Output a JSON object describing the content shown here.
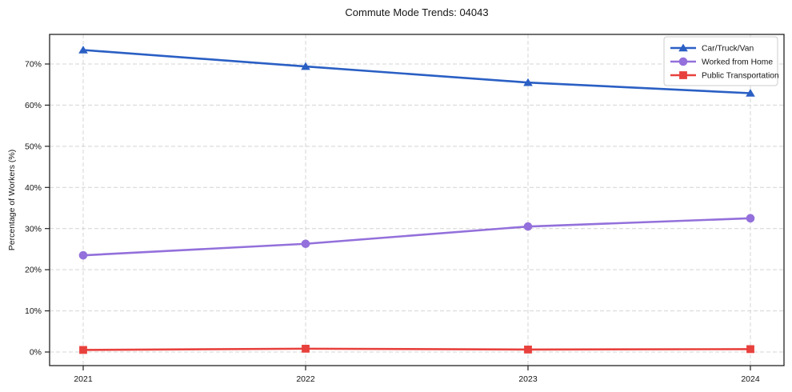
{
  "chart_data": {
    "type": "line",
    "title": "Commute Mode Trends: 04043",
    "xlabel": "",
    "ylabel": "Percentage of Workers (%)",
    "categories": [
      "2021",
      "2022",
      "2023",
      "2024"
    ],
    "yticks": [
      0,
      10,
      20,
      30,
      40,
      50,
      60,
      70
    ],
    "ytick_labels": [
      "0%",
      "10%",
      "20%",
      "30%",
      "40%",
      "50%",
      "60%",
      "70%"
    ],
    "ylim": [
      -3,
      77
    ],
    "grid": "dashed",
    "legend_position": "upper right",
    "series": [
      {
        "name": "Car/Truck/Van",
        "marker": "triangle",
        "color": "#2a5fc4",
        "values": [
          73.4,
          69.4,
          65.5,
          62.9
        ]
      },
      {
        "name": "Worked from Home",
        "marker": "circle",
        "color": "#9370db",
        "values": [
          23.5,
          26.3,
          30.5,
          32.5
        ]
      },
      {
        "name": "Public Transportation",
        "marker": "square",
        "color": "#e8413d",
        "values": [
          0.5,
          0.8,
          0.6,
          0.7
        ]
      }
    ],
    "colors": {
      "grid": "#d4d4d4",
      "frame": "#222222",
      "text": "#151515",
      "legend_border": "#cccccc"
    }
  }
}
